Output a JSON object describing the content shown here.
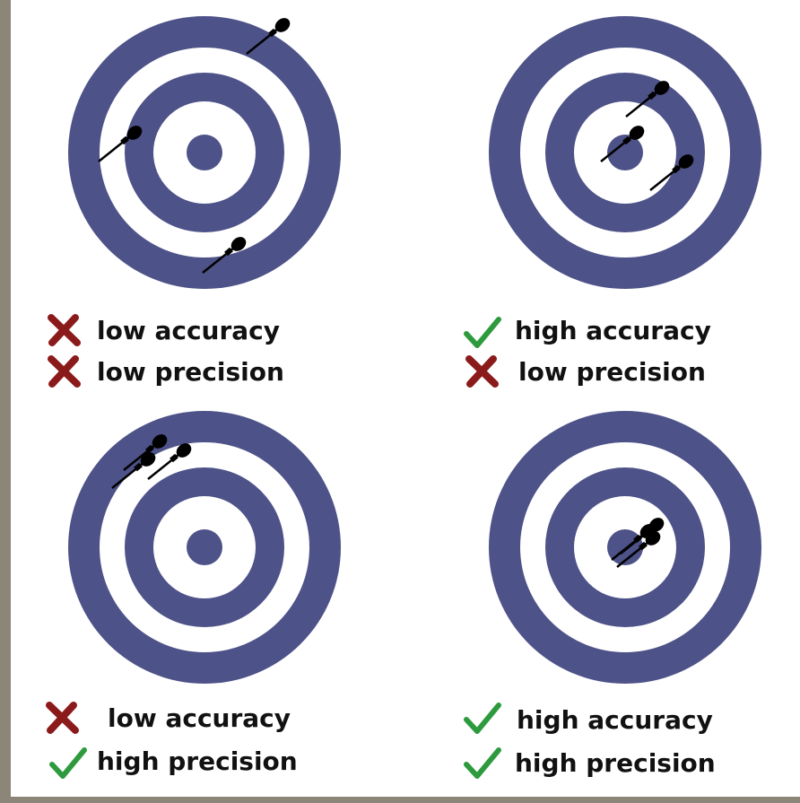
{
  "panels": [
    {
      "lines": [
        "low accuracy",
        "low precision"
      ]
    },
    {
      "lines": [
        "high accuracy",
        "low precision"
      ]
    },
    {
      "lines": [
        "low accuracy",
        "high precision"
      ]
    },
    {
      "lines": [
        "high accuracy",
        "high precision"
      ]
    }
  ]
}
